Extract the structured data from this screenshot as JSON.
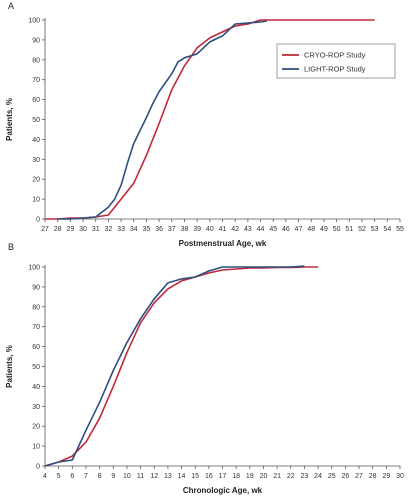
{
  "chart_data": [
    {
      "type": "line",
      "panel_label": "A",
      "xlabel": "Postmenstrual Age, wk",
      "ylabel": "Patients, %",
      "xlim": [
        27,
        55
      ],
      "ylim": [
        0,
        100
      ],
      "xticks": [
        27,
        28,
        29,
        30,
        31,
        32,
        33,
        34,
        35,
        36,
        37,
        38,
        39,
        40,
        41,
        42,
        43,
        44,
        45,
        46,
        47,
        48,
        49,
        50,
        51,
        52,
        53,
        54,
        55
      ],
      "yticks": [
        0,
        10,
        20,
        30,
        40,
        50,
        60,
        70,
        80,
        90,
        100
      ],
      "grid": false,
      "legend": "right",
      "series": [
        {
          "name": "CRYO-ROP Study",
          "color": "#c0283a",
          "x": [
            27,
            28,
            29,
            30,
            31,
            32,
            33,
            34,
            35,
            36,
            37,
            38,
            39,
            40,
            41,
            42,
            43,
            44,
            45,
            46,
            47,
            48,
            49,
            50,
            51,
            52,
            53
          ],
          "y": [
            0,
            0,
            0.5,
            0.5,
            1,
            2,
            10,
            18,
            32,
            48,
            65,
            77,
            86,
            91,
            94,
            97,
            98,
            100,
            100,
            100,
            100,
            100,
            100,
            100,
            100,
            100,
            100
          ]
        },
        {
          "name": "LIGHT-ROP Study",
          "color": "#2e4e7e",
          "x": [
            28,
            29,
            30,
            31,
            32,
            32.5,
            33,
            33.5,
            34,
            35,
            35.5,
            36,
            37,
            37.5,
            38,
            39,
            40,
            41,
            42,
            43,
            44,
            44.5
          ],
          "y": [
            0,
            0,
            0.5,
            1,
            6,
            10,
            17,
            28,
            38,
            51,
            58,
            64,
            73,
            79,
            81,
            83,
            89,
            92,
            98,
            98.5,
            99,
            99.5
          ]
        }
      ]
    },
    {
      "type": "line",
      "panel_label": "B",
      "xlabel": "Chronologic Age, wk",
      "ylabel": "Patients, %",
      "xlim": [
        4,
        30
      ],
      "ylim": [
        0,
        100
      ],
      "xticks": [
        4,
        5,
        6,
        7,
        8,
        9,
        10,
        11,
        12,
        13,
        14,
        15,
        16,
        17,
        18,
        19,
        20,
        21,
        22,
        23,
        24,
        25,
        26,
        27,
        28,
        29,
        30
      ],
      "yticks": [
        0,
        10,
        20,
        30,
        40,
        50,
        60,
        70,
        80,
        90,
        100
      ],
      "grid": false,
      "series": [
        {
          "name": "CRYO-ROP Study",
          "color": "#c0283a",
          "x": [
            4,
            5,
            6,
            7,
            8,
            9,
            10,
            11,
            12,
            13,
            14,
            15,
            16,
            17,
            18,
            19,
            20,
            21,
            22,
            23,
            24
          ],
          "y": [
            0,
            2,
            5,
            12,
            24,
            40,
            57,
            72,
            82,
            89,
            93,
            95,
            97,
            98.5,
            99,
            99.5,
            99.5,
            99.8,
            99.8,
            100,
            100
          ]
        },
        {
          "name": "LIGHT-ROP Study",
          "color": "#2e4e7e",
          "x": [
            4,
            5,
            6,
            7,
            8,
            9,
            10,
            11,
            12,
            13,
            14,
            15,
            16,
            17,
            18,
            19,
            20,
            21,
            22,
            23
          ],
          "y": [
            0,
            2,
            3,
            18,
            32,
            48,
            62,
            74,
            84,
            92,
            94,
            95,
            98,
            100,
            100,
            100,
            100,
            100,
            100,
            100.5
          ]
        }
      ]
    }
  ]
}
